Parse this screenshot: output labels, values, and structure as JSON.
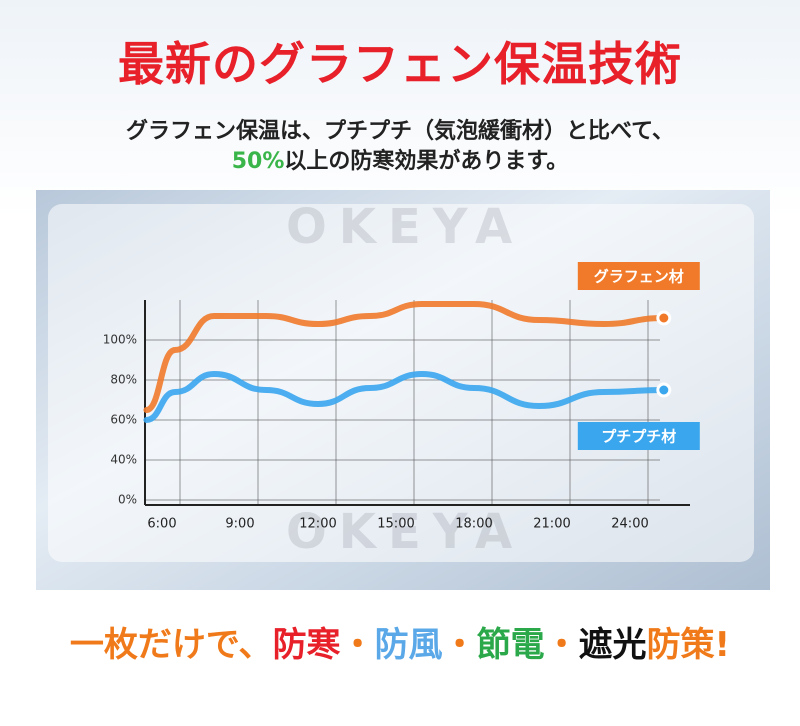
{
  "header": {
    "title": "最新のグラフェン保温技術",
    "subtitle_line1": "グラフェン保温は、プチプチ（気泡緩衝材）と比べて、",
    "subtitle_highlight": "50%",
    "subtitle_line2": "以上の防寒効果があります。"
  },
  "watermarks": [
    "OKEYA",
    "OKEYA"
  ],
  "chart_data": {
    "type": "line",
    "x": [
      5.4,
      6.5,
      8,
      10,
      12,
      14,
      16,
      18,
      20.5,
      23,
      25.3
    ],
    "xlim": [
      5,
      27
    ],
    "xticks": [
      {
        "value": 6,
        "label": "6:00"
      },
      {
        "value": 9,
        "label": "9:00"
      },
      {
        "value": 12,
        "label": "12:00"
      },
      {
        "value": 15,
        "label": "15:00"
      },
      {
        "value": 18,
        "label": "18:00"
      },
      {
        "value": 21,
        "label": "21:00"
      },
      {
        "value": 24,
        "label": "24:00"
      }
    ],
    "ylim": [
      0,
      120
    ],
    "yticks": [
      {
        "value": 0,
        "label": "0%"
      },
      {
        "value": 40,
        "label": "40%"
      },
      {
        "value": 60,
        "label": "60%"
      },
      {
        "value": 80,
        "label": "80%"
      },
      {
        "value": 100,
        "label": "100%"
      }
    ],
    "grid": true,
    "series": [
      {
        "name": "グラフェン材",
        "color": "#f07a2a",
        "values": [
          65,
          95,
          112,
          112,
          108,
          112,
          118,
          118,
          110,
          108,
          111
        ]
      },
      {
        "name": "プチプチ材",
        "color": "#3aa6ee",
        "values": [
          60,
          74,
          83,
          75,
          68,
          76,
          83,
          76,
          67,
          74,
          75
        ]
      }
    ]
  },
  "footer": {
    "parts": [
      {
        "text": "一枚だけで、",
        "color": "#f07a1a"
      },
      {
        "text": "防寒",
        "color": "#e8202a"
      },
      {
        "text": "・",
        "color": "#f07a1a"
      },
      {
        "text": "防風",
        "color": "#5aa8e8"
      },
      {
        "text": "・",
        "color": "#f07a1a"
      },
      {
        "text": "節電",
        "color": "#2aa84a"
      },
      {
        "text": "・",
        "color": "#f07a1a"
      },
      {
        "text": "遮光",
        "color": "#111111"
      },
      {
        "text": "防策!",
        "color": "#f07a1a"
      }
    ]
  }
}
